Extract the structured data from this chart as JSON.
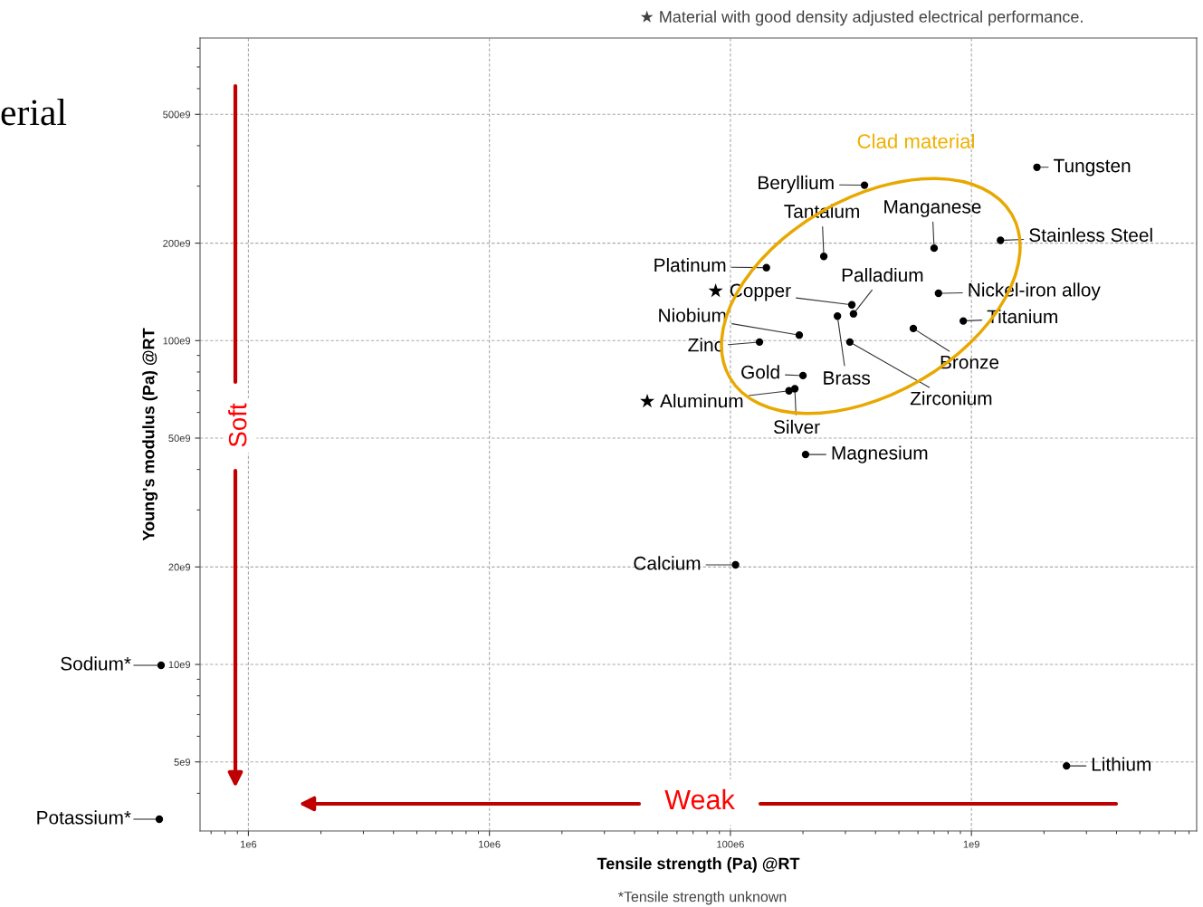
{
  "chart_data": {
    "type": "scatter",
    "xlabel": "Tensile strength (Pa) @RT",
    "ylabel": "Young's modulus (Pa) @RT",
    "log": "xy",
    "xlim": [
      630000,
      8600000000
    ],
    "ylim": [
      3060000000,
      860000000000
    ],
    "xticks": [
      {
        "value": 1000000,
        "label": "1e6"
      },
      {
        "value": 10000000,
        "label": "10e6"
      },
      {
        "value": 100000000,
        "label": "100e6"
      },
      {
        "value": 1000000000,
        "label": "1e9"
      }
    ],
    "yticks": [
      {
        "value": 5000000000,
        "label": "5e9"
      },
      {
        "value": 10000000000,
        "label": "10e9"
      },
      {
        "value": 20000000000,
        "label": "20e9"
      },
      {
        "value": 50000000000,
        "label": "50e9"
      },
      {
        "value": 100000000000,
        "label": "100e9"
      },
      {
        "value": 200000000000,
        "label": "200e9"
      },
      {
        "value": 500000000000,
        "label": "500e9"
      }
    ],
    "grid": true,
    "marker": "circle",
    "legend": false,
    "series": [
      {
        "name": "Tungsten",
        "color": "#000000",
        "x": [
          1870000000
        ],
        "values": [
          343000000000
        ]
      },
      {
        "name": "Beryllium",
        "color": "#000000",
        "x": [
          360000000
        ],
        "values": [
          302000000000
        ]
      },
      {
        "name": "Tantalum",
        "color": "#000000",
        "x": [
          244000000
        ],
        "values": [
          182000000000
        ]
      },
      {
        "name": "Manganese",
        "color": "#000000",
        "x": [
          700000000
        ],
        "values": [
          193000000000
        ]
      },
      {
        "name": "Stainless Steel",
        "color": "#000000",
        "x": [
          1320000000
        ],
        "values": [
          204000000000
        ]
      },
      {
        "name": "Platinum",
        "color": "#000000",
        "x": [
          141000000
        ],
        "values": [
          168000000000
        ]
      },
      {
        "name": "★ Copper",
        "color": "#000000",
        "x": [
          319000000
        ],
        "values": [
          129000000000
        ]
      },
      {
        "name": "Palladium",
        "color": "#000000",
        "x": [
          324000000
        ],
        "values": [
          121000000000
        ]
      },
      {
        "name": "Nickel-iron alloy",
        "color": "#000000",
        "x": [
          730000000
        ],
        "values": [
          140000000000
        ]
      },
      {
        "name": "Brass",
        "color": "#000000",
        "x": [
          278000000
        ],
        "values": [
          119000000000
        ]
      },
      {
        "name": "Titanium",
        "color": "#000000",
        "x": [
          925000000
        ],
        "values": [
          115000000000
        ]
      },
      {
        "name": "Bronze",
        "color": "#000000",
        "x": [
          574000000
        ],
        "values": [
          109000000000
        ]
      },
      {
        "name": "Niobium",
        "color": "#000000",
        "x": [
          193000000
        ],
        "values": [
          104000000000
        ]
      },
      {
        "name": "Zirconium",
        "color": "#000000",
        "x": [
          313000000
        ],
        "values": [
          99000000000
        ]
      },
      {
        "name": "Zinc",
        "color": "#000000",
        "x": [
          132000000
        ],
        "values": [
          99000000000
        ]
      },
      {
        "name": "Gold",
        "color": "#000000",
        "x": [
          200000000
        ],
        "values": [
          78000000000
        ]
      },
      {
        "name": "Silver",
        "color": "#000000",
        "x": [
          185000000
        ],
        "values": [
          71000000000
        ]
      },
      {
        "name": "★ Aluminum",
        "color": "#000000",
        "x": [
          175000000
        ],
        "values": [
          70000000000
        ]
      },
      {
        "name": "Magnesium",
        "color": "#000000",
        "x": [
          205000000
        ],
        "values": [
          44500000000
        ]
      },
      {
        "name": "Calcium",
        "color": "#000000",
        "x": [
          105000000
        ],
        "values": [
          20300000000
        ]
      },
      {
        "name": "Lithium",
        "color": "#000000",
        "x": [
          2480000000
        ],
        "values": [
          4860000000
        ]
      }
    ],
    "annotations": [
      "★ Material with good density adjusted electrical performance.",
      "Clad material",
      "Soft",
      "Weak",
      "*Tensile strength unknown",
      "erial",
      "Sodium*",
      "Potassium*"
    ]
  }
}
